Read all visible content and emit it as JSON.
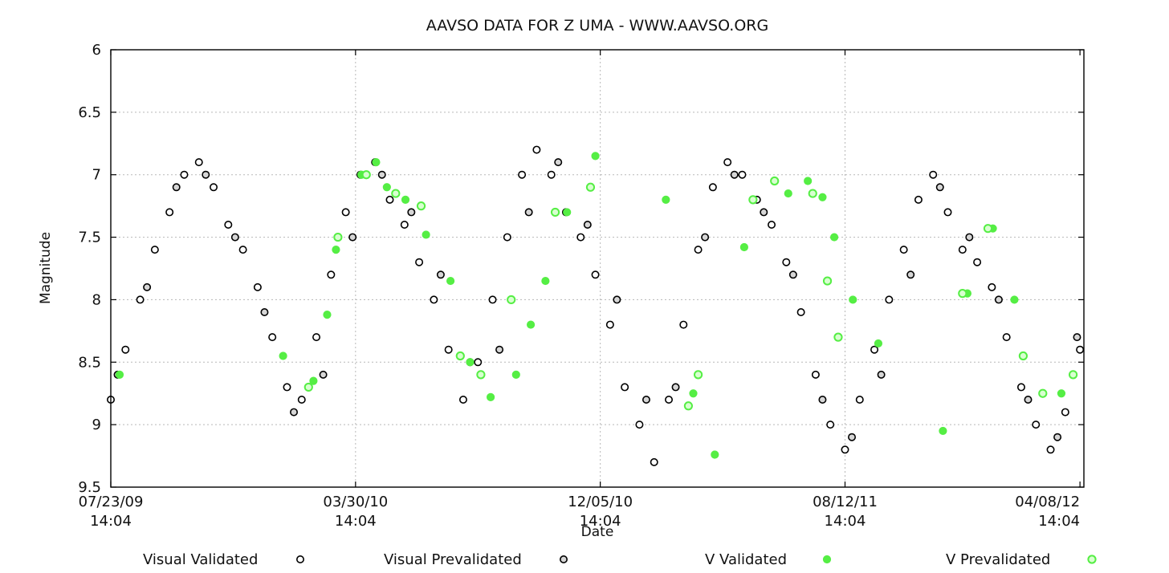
{
  "chart_data": {
    "type": "scatter",
    "title": "AAVSO DATA FOR Z UMA - WWW.AAVSO.ORG",
    "xlabel": "Date",
    "ylabel": "Magnitude",
    "ylim": [
      9.5,
      6
    ],
    "y_inverted": true,
    "y_ticks": [
      "6",
      "6.5",
      "7",
      "7.5",
      "8",
      "8.5",
      "9",
      "9.5"
    ],
    "x_ticks": [
      {
        "date": "07/23/09",
        "time": "14:04"
      },
      {
        "date": "03/30/10",
        "time": "14:04"
      },
      {
        "date": "12/05/10",
        "time": "14:04"
      },
      {
        "date": "08/12/11",
        "time": "14:04"
      },
      {
        "date": "04/08/12",
        "time": "14:04"
      }
    ],
    "xlim": [
      "2009-07-23",
      "2012-04-12"
    ],
    "grid": true,
    "legend_position": "bottom",
    "legend": [
      {
        "name": "Visual Validated",
        "color": "#000000"
      },
      {
        "name": "Visual Prevalidated",
        "color": "#000000"
      },
      {
        "name": "V Validated",
        "color": "#55ee44"
      },
      {
        "name": "V Prevalidated",
        "color": "#55ee44"
      }
    ],
    "series": [
      {
        "name": "Visual Validated",
        "color": "#000000",
        "x": [
          "2009-07-23",
          "2009-08-07",
          "2009-08-22",
          "2009-09-06",
          "2009-09-21",
          "2009-10-06",
          "2009-10-21",
          "2009-11-05",
          "2009-11-20",
          "2009-12-05",
          "2009-12-20",
          "2010-01-04",
          "2010-01-19",
          "2010-02-03",
          "2010-02-18",
          "2010-03-05",
          "2010-03-20",
          "2010-04-04",
          "2010-04-19",
          "2010-05-04",
          "2010-05-19",
          "2010-06-03",
          "2010-06-18",
          "2010-07-03",
          "2010-07-18",
          "2010-08-02",
          "2010-08-17",
          "2010-09-01",
          "2010-09-16",
          "2010-10-01",
          "2010-10-16",
          "2010-10-31",
          "2010-11-15",
          "2010-11-30",
          "2010-12-15",
          "2010-12-30",
          "2011-01-14",
          "2011-01-29",
          "2011-02-13",
          "2011-02-28",
          "2011-03-15",
          "2011-03-30",
          "2011-04-14",
          "2011-04-29",
          "2011-05-14",
          "2011-05-29",
          "2011-06-13",
          "2011-06-28",
          "2011-07-13",
          "2011-07-28",
          "2011-08-12",
          "2011-08-27",
          "2011-09-11",
          "2011-09-26",
          "2011-10-11",
          "2011-10-26",
          "2011-11-10",
          "2011-11-25",
          "2011-12-10",
          "2011-12-25",
          "2012-01-09",
          "2012-01-24",
          "2012-02-08",
          "2012-02-23",
          "2012-03-09",
          "2012-03-24",
          "2012-04-08"
        ],
        "y": [
          8.8,
          8.4,
          8.0,
          7.6,
          7.3,
          7.0,
          6.9,
          7.1,
          7.4,
          7.6,
          7.9,
          8.3,
          8.7,
          8.8,
          8.3,
          7.8,
          7.3,
          7.0,
          6.9,
          7.2,
          7.4,
          7.7,
          8.0,
          8.4,
          8.8,
          8.5,
          8.0,
          7.5,
          7.0,
          6.8,
          7.0,
          7.3,
          7.5,
          7.8,
          8.2,
          8.7,
          9.0,
          9.3,
          8.8,
          8.2,
          7.6,
          7.1,
          6.9,
          7.0,
          7.2,
          7.4,
          7.7,
          8.1,
          8.6,
          9.0,
          9.2,
          8.8,
          8.4,
          8.0,
          7.6,
          7.2,
          7.0,
          7.3,
          7.6,
          7.7,
          7.9,
          8.3,
          8.7,
          9.0,
          9.2,
          8.9,
          8.4
        ]
      },
      {
        "name": "Visual Prevalidated",
        "color": "#000000",
        "x": [
          "2009-07-30",
          "2009-08-29",
          "2009-09-28",
          "2009-10-28",
          "2009-11-27",
          "2009-12-27",
          "2010-01-26",
          "2010-02-25",
          "2010-03-27",
          "2010-04-26",
          "2010-05-26",
          "2010-06-25",
          "2010-07-25",
          "2010-08-24",
          "2010-09-23",
          "2010-10-23",
          "2010-11-22",
          "2010-12-22",
          "2011-01-21",
          "2011-02-20",
          "2011-03-22",
          "2011-04-21",
          "2011-05-21",
          "2011-06-20",
          "2011-07-20",
          "2011-08-19",
          "2011-09-18",
          "2011-10-18",
          "2011-11-17",
          "2011-12-17",
          "2012-01-16",
          "2012-02-15",
          "2012-03-16",
          "2012-04-05"
        ],
        "y": [
          8.6,
          7.9,
          7.1,
          7.0,
          7.5,
          8.1,
          8.9,
          8.6,
          7.5,
          7.0,
          7.3,
          7.8,
          8.5,
          8.4,
          7.3,
          6.9,
          7.4,
          8.0,
          8.8,
          8.7,
          7.5,
          7.0,
          7.3,
          7.8,
          8.8,
          9.1,
          8.6,
          7.8,
          7.1,
          7.5,
          8.0,
          8.8,
          9.1,
          8.3
        ]
      },
      {
        "name": "V Validated",
        "color": "#55ee44",
        "x": [
          "2009-08-01",
          "2010-01-15",
          "2010-02-15",
          "2010-03-01",
          "2010-03-10",
          "2010-04-05",
          "2010-04-20",
          "2010-05-01",
          "2010-05-20",
          "2010-06-10",
          "2010-07-05",
          "2010-07-25",
          "2010-08-15",
          "2010-09-10",
          "2010-09-25",
          "2010-10-10",
          "2010-11-01",
          "2010-11-30",
          "2011-02-10",
          "2011-03-10",
          "2011-04-01",
          "2011-05-01",
          "2011-06-15",
          "2011-07-05",
          "2011-07-20",
          "2011-08-01",
          "2011-08-20",
          "2011-09-15",
          "2011-11-20",
          "2011-12-15",
          "2012-01-10",
          "2012-02-01",
          "2012-03-20"
        ],
        "y": [
          8.6,
          8.45,
          8.65,
          8.12,
          7.6,
          7.0,
          6.9,
          7.1,
          7.2,
          7.48,
          7.85,
          8.5,
          8.78,
          8.6,
          8.2,
          7.85,
          7.3,
          6.85,
          7.2,
          8.75,
          9.24,
          7.58,
          7.15,
          7.05,
          7.18,
          7.5,
          8.0,
          8.35,
          9.05,
          7.95,
          7.43,
          8.0,
          8.75
        ]
      },
      {
        "name": "V Prevalidated",
        "color": "#55ee44",
        "x": [
          "2010-02-10",
          "2010-03-12",
          "2010-04-10",
          "2010-05-10",
          "2010-06-05",
          "2010-07-15",
          "2010-08-05",
          "2010-09-05",
          "2010-10-20",
          "2010-11-25",
          "2011-03-05",
          "2011-03-15",
          "2011-05-10",
          "2011-06-01",
          "2011-07-10",
          "2011-07-25",
          "2011-08-05",
          "2011-12-10",
          "2012-01-05",
          "2012-02-10",
          "2012-03-01",
          "2012-04-01"
        ],
        "y": [
          8.7,
          7.5,
          7.0,
          7.15,
          7.25,
          8.45,
          8.6,
          8.0,
          7.3,
          7.1,
          8.85,
          8.6,
          7.2,
          7.05,
          7.15,
          7.85,
          8.3,
          7.95,
          7.43,
          8.45,
          8.75,
          8.6
        ]
      }
    ]
  }
}
